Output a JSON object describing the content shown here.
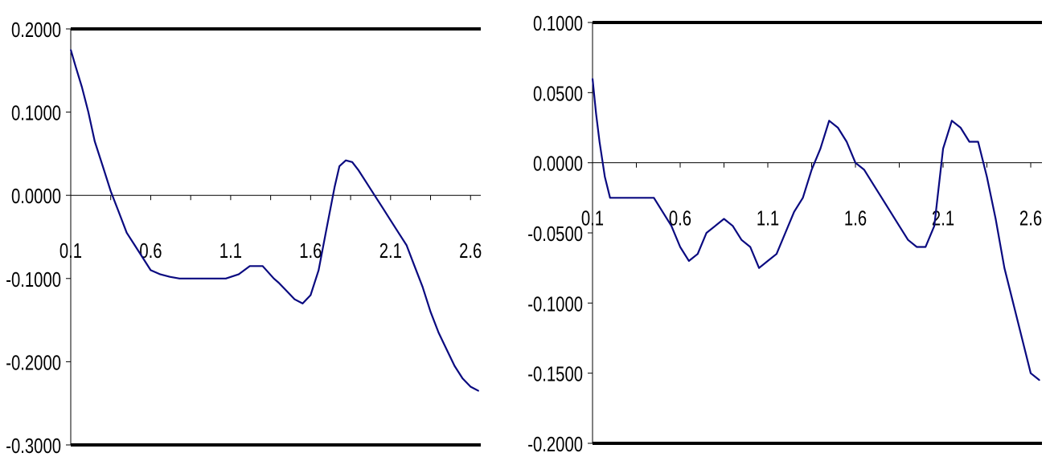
{
  "chart_data": [
    {
      "type": "line",
      "title": "",
      "xlabel": "",
      "ylabel": "",
      "xlim": [
        0.1,
        2.6
      ],
      "ylim": [
        -0.3,
        0.2
      ],
      "y_ticks": [
        "0.2000",
        "0.1000",
        "0.0000",
        "-0.1000",
        "-0.2000",
        "-0.3000"
      ],
      "x_ticks": [
        "0.1",
        "0.6",
        "1.1",
        "1.6",
        "2.1",
        "2.6"
      ],
      "line_color": "#0a0a80",
      "series": [
        {
          "x": [
            0.1,
            0.13,
            0.17,
            0.21,
            0.25,
            0.3,
            0.35,
            0.4,
            0.45,
            0.5,
            0.55,
            0.6,
            0.66,
            0.72,
            0.78,
            0.85,
            0.92,
            1.0,
            1.07,
            1.15,
            1.22,
            1.3,
            1.37,
            1.4,
            1.45,
            1.5,
            1.55,
            1.6,
            1.65,
            1.7,
            1.75,
            1.78,
            1.82,
            1.86,
            1.9,
            1.95,
            2.0,
            2.05,
            2.1,
            2.15,
            2.2,
            2.25,
            2.3,
            2.35,
            2.4,
            2.45,
            2.5,
            2.55,
            2.6,
            2.65
          ],
          "y": [
            0.175,
            0.155,
            0.13,
            0.1,
            0.065,
            0.035,
            0.005,
            -0.02,
            -0.045,
            -0.06,
            -0.075,
            -0.09,
            -0.095,
            -0.098,
            -0.1,
            -0.1,
            -0.1,
            -0.1,
            -0.1,
            -0.095,
            -0.085,
            -0.085,
            -0.1,
            -0.105,
            -0.115,
            -0.125,
            -0.13,
            -0.12,
            -0.09,
            -0.04,
            0.01,
            0.035,
            0.042,
            0.04,
            0.03,
            0.015,
            0.0,
            -0.015,
            -0.03,
            -0.045,
            -0.06,
            -0.085,
            -0.11,
            -0.14,
            -0.165,
            -0.185,
            -0.205,
            -0.22,
            -0.23,
            -0.235
          ]
        }
      ]
    },
    {
      "type": "line",
      "title": "",
      "xlabel": "",
      "ylabel": "",
      "xlim": [
        0.1,
        2.6
      ],
      "ylim": [
        -0.2,
        0.1
      ],
      "y_ticks": [
        "0.1000",
        "0.0500",
        "0.0000",
        "-0.0500",
        "-0.1000",
        "-0.1500",
        "-0.2000"
      ],
      "x_ticks": [
        "0.1",
        "0.6",
        "1.1",
        "1.6",
        "2.1",
        "2.6"
      ],
      "line_color": "#0a0a80",
      "series": [
        {
          "x": [
            0.1,
            0.12,
            0.14,
            0.17,
            0.2,
            0.23,
            0.26,
            0.3,
            0.35,
            0.4,
            0.45,
            0.5,
            0.55,
            0.6,
            0.65,
            0.7,
            0.75,
            0.8,
            0.85,
            0.9,
            0.95,
            1.0,
            1.05,
            1.1,
            1.15,
            1.2,
            1.25,
            1.3,
            1.35,
            1.4,
            1.45,
            1.5,
            1.55,
            1.6,
            1.65,
            1.7,
            1.75,
            1.8,
            1.85,
            1.9,
            1.95,
            2.0,
            2.05,
            2.1,
            2.15,
            2.2,
            2.25,
            2.3,
            2.35,
            2.4,
            2.45,
            2.5,
            2.55,
            2.6,
            2.65
          ],
          "y": [
            0.06,
            0.035,
            0.015,
            -0.01,
            -0.025,
            -0.025,
            -0.025,
            -0.025,
            -0.025,
            -0.025,
            -0.025,
            -0.035,
            -0.045,
            -0.06,
            -0.07,
            -0.065,
            -0.05,
            -0.045,
            -0.04,
            -0.045,
            -0.055,
            -0.06,
            -0.075,
            -0.07,
            -0.065,
            -0.05,
            -0.035,
            -0.025,
            -0.005,
            0.01,
            0.03,
            0.025,
            0.015,
            0.0,
            -0.005,
            -0.015,
            -0.025,
            -0.035,
            -0.045,
            -0.055,
            -0.06,
            -0.06,
            -0.045,
            0.01,
            0.03,
            0.025,
            0.015,
            0.015,
            -0.01,
            -0.04,
            -0.075,
            -0.1,
            -0.125,
            -0.15,
            -0.155
          ]
        }
      ]
    }
  ]
}
